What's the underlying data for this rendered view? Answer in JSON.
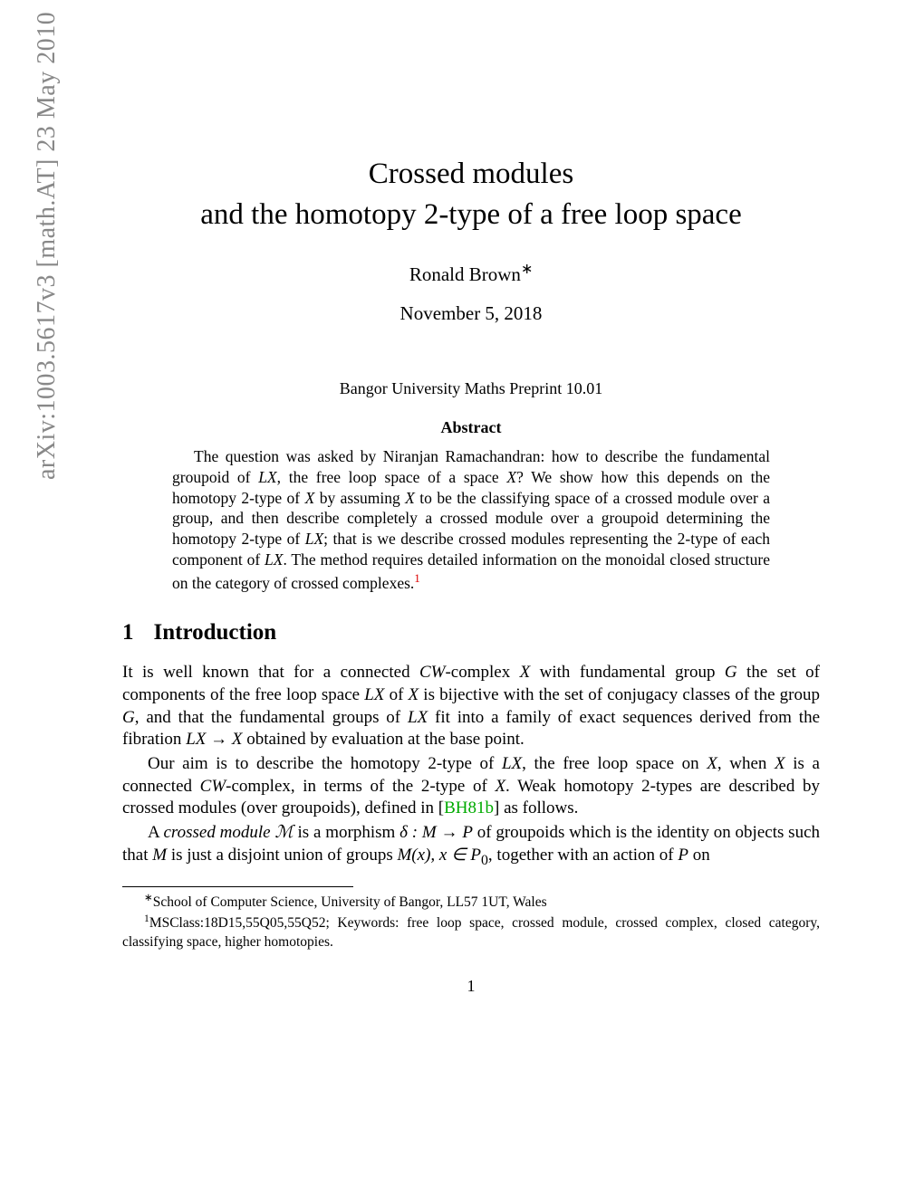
{
  "arxiv_stamp": "arXiv:1003.5617v3  [math.AT]  23 May 2010",
  "title_line1": "Crossed modules",
  "title_line2": "and the homotopy 2-type of a free loop space",
  "author": "Ronald Brown",
  "author_mark": "∗",
  "date": "November 5, 2018",
  "preprint": "Bangor University Maths Preprint 10.01",
  "abstract_heading": "Abstract",
  "abstract_text_1": "The question was asked by Niranjan Ramachandran: how to describe the fundamental groupoid of ",
  "abstract_LX_1": "LX",
  "abstract_text_2": ", the free loop space of a space ",
  "abstract_X_1": "X",
  "abstract_text_3": "?  We show how this depends on the homotopy 2-type of ",
  "abstract_X_2": "X",
  "abstract_text_4": " by assuming ",
  "abstract_X_3": "X",
  "abstract_text_5": " to be the classifying space of a crossed module over a group, and then describe completely a crossed module over a groupoid determining the homotopy 2-type of ",
  "abstract_LX_2": "LX",
  "abstract_text_6": "; that is we describe crossed modules representing the 2-type of each component of ",
  "abstract_LX_3": "LX",
  "abstract_text_7": ".  The method requires detailed information on the monoidal closed structure on the category of crossed complexes.",
  "abstract_fnref": "1",
  "section_num": "1",
  "section_title": "Introduction",
  "p1_a": "It is well known that for a connected ",
  "p1_CW": "CW",
  "p1_b": "-complex ",
  "p1_X1": "X",
  "p1_c": " with fundamental group ",
  "p1_G1": "G",
  "p1_d": " the set of components of the free loop space ",
  "p1_LX": "LX",
  "p1_e": " of ",
  "p1_X2": "X",
  "p1_f": " is bijective with the set of conjugacy classes of the group ",
  "p1_G2": "G",
  "p1_g": ", and that the fundamental groups of ",
  "p1_LX2": "LX",
  "p1_h": " fit into a family of exact sequences derived from the fibration ",
  "p1_fib": "LX → X",
  "p1_i": " obtained by evaluation at the base point.",
  "p2_a": "Our aim is to describe the homotopy 2-type of ",
  "p2_LX": "LX",
  "p2_b": ", the free loop space on ",
  "p2_X1": "X",
  "p2_c": ", when ",
  "p2_X2": "X",
  "p2_d": " is a connected ",
  "p2_CW": "CW",
  "p2_e": "-complex, in terms of the 2-type of ",
  "p2_X3": "X",
  "p2_f": ". Weak homotopy 2-types are described by crossed modules (over groupoids), defined in [",
  "p2_cite": "BH81b",
  "p2_g": "] as follows.",
  "p3_a": "A ",
  "p3_cm": "crossed module",
  "p3_b": " ",
  "p3_M": "ℳ",
  "p3_c": " is a morphism ",
  "p3_delta": "δ : M → P",
  "p3_d": " of groupoids which is the identity on objects such that ",
  "p3_M2": "M",
  "p3_e": " is just a disjoint union of groups ",
  "p3_Mx": "M(x), x ∈ P",
  "p3_sub0": "0",
  "p3_f": ", together with an action of ",
  "p3_P": "P",
  "p3_g": " on",
  "fn1_mark": "∗",
  "fn1_text": "School of Computer Science, University of Bangor, LL57 1UT, Wales",
  "fn2_mark": "1",
  "fn2_text": "MSClass:18D15,55Q05,55Q52; Keywords: free loop space, crossed module, crossed complex, closed category, classifying space, higher homotopies.",
  "page_number": "1",
  "colors": {
    "text": "#000000",
    "arxiv": "#888888",
    "cite": "#00aa00",
    "fnref": "#dd0000",
    "background": "#ffffff"
  },
  "fonts": {
    "body_family": "Times New Roman",
    "title_size_pt": 25,
    "author_size_pt": 16,
    "body_size_pt": 14,
    "abstract_size_pt": 13,
    "footnote_size_pt": 12,
    "arxiv_size_pt": 21
  }
}
